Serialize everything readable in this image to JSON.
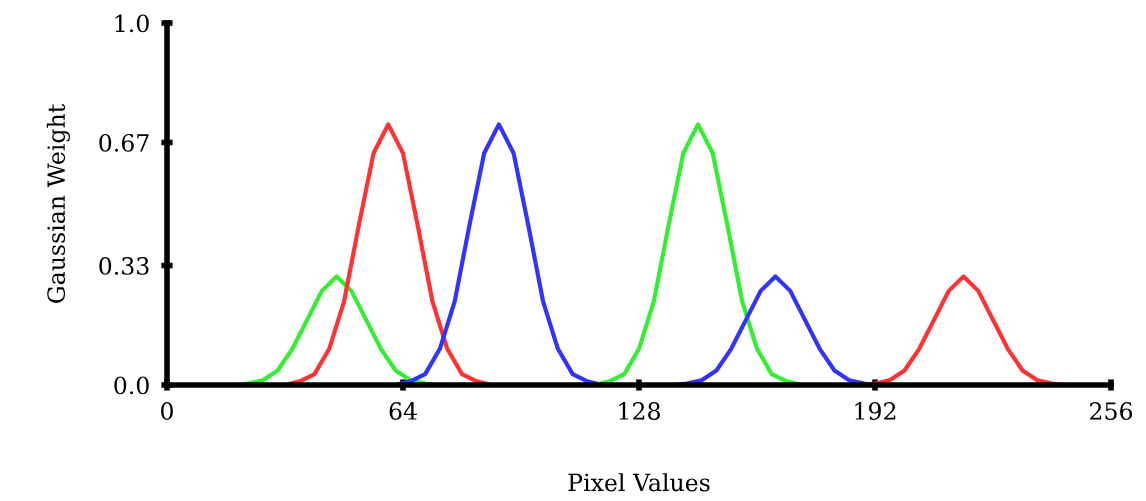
{
  "chart_data": {
    "type": "line",
    "xlabel": "Pixel Values",
    "ylabel": "Gaussian Weight",
    "xlim": [
      0,
      256
    ],
    "ylim": [
      0,
      1.0
    ],
    "xticks": [
      0,
      64,
      128,
      192,
      256
    ],
    "yticks": [
      {
        "value": 0,
        "label": "0.0"
      },
      0.33,
      0.67,
      {
        "value": 1.0,
        "label": "1.0"
      }
    ],
    "grid": false,
    "legend": false,
    "marker": "none",
    "line_style": "solid",
    "series": [
      {
        "color": "#33ee33",
        "x": [
          18,
          22,
          26,
          30,
          34,
          38,
          42,
          46,
          50,
          54,
          58,
          62,
          66,
          70,
          74
        ],
        "values": [
          0.0,
          0.004,
          0.013,
          0.04,
          0.1,
          0.18,
          0.26,
          0.3,
          0.26,
          0.18,
          0.1,
          0.04,
          0.013,
          0.004,
          0.0
        ]
      },
      {
        "color": "#ff3333",
        "x": [
          32,
          36,
          40,
          44,
          48,
          52,
          56,
          60,
          64,
          68,
          72,
          76,
          80,
          84,
          88
        ],
        "values": [
          0.0,
          0.01,
          0.03,
          0.1,
          0.23,
          0.44,
          0.64,
          0.72,
          0.64,
          0.44,
          0.23,
          0.1,
          0.03,
          0.01,
          0.0
        ]
      },
      {
        "color": "#3333ff",
        "x": [
          62,
          66,
          70,
          74,
          78,
          82,
          86,
          90,
          94,
          98,
          102,
          106,
          110,
          114,
          118
        ],
        "values": [
          0.0,
          0.01,
          0.03,
          0.1,
          0.23,
          0.44,
          0.64,
          0.72,
          0.64,
          0.44,
          0.23,
          0.1,
          0.03,
          0.01,
          0.0
        ]
      },
      {
        "color": "#33ee33",
        "x": [
          116,
          120,
          124,
          128,
          132,
          136,
          140,
          144,
          148,
          152,
          156,
          160,
          164,
          168,
          172
        ],
        "values": [
          0.0,
          0.01,
          0.03,
          0.1,
          0.23,
          0.44,
          0.64,
          0.72,
          0.64,
          0.44,
          0.23,
          0.1,
          0.03,
          0.01,
          0.0
        ]
      },
      {
        "color": "#3333ff",
        "x": [
          137,
          141,
          145,
          149,
          153,
          157,
          161,
          165,
          169,
          173,
          177,
          181,
          185,
          189,
          193
        ],
        "values": [
          0.0,
          0.004,
          0.013,
          0.04,
          0.1,
          0.18,
          0.26,
          0.3,
          0.26,
          0.18,
          0.1,
          0.04,
          0.013,
          0.004,
          0.0
        ]
      },
      {
        "color": "#ff3333",
        "x": [
          188,
          192,
          196,
          200,
          204,
          208,
          212,
          216,
          220,
          224,
          228,
          232,
          236,
          240,
          244
        ],
        "values": [
          0.0,
          0.004,
          0.013,
          0.04,
          0.1,
          0.18,
          0.26,
          0.3,
          0.26,
          0.18,
          0.1,
          0.04,
          0.013,
          0.004,
          0.0
        ]
      }
    ]
  }
}
